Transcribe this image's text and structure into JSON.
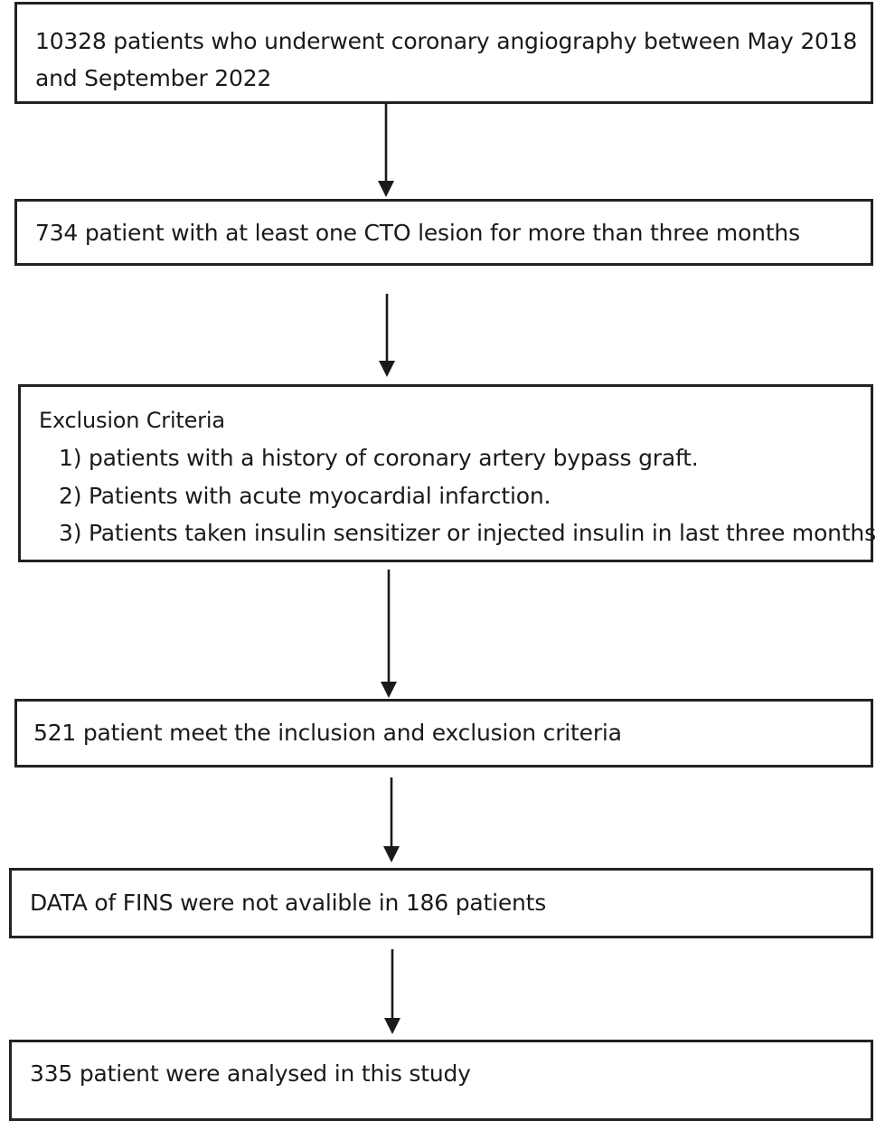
{
  "flowchart": {
    "step1": {
      "line1": "10328 patients who underwent coronary angiography between May 2018",
      "line2": "and September 2022"
    },
    "step2": {
      "text": "734 patient with at least one CTO lesion for more than three months"
    },
    "step3": {
      "heading": "Exclusion Criteria",
      "items": [
        "1) patients with a history of coronary artery bypass graft.",
        "2) Patients with acute myocardial infarction.",
        "3) Patients taken insulin sensitizer or injected insulin in last three months"
      ]
    },
    "step4": {
      "text": "521 patient meet the inclusion and exclusion criteria"
    },
    "step5": {
      "text": "DATA of FINS were not avalible in 186 patients"
    },
    "step6": {
      "text": "335 patient were analysed in this study"
    }
  }
}
